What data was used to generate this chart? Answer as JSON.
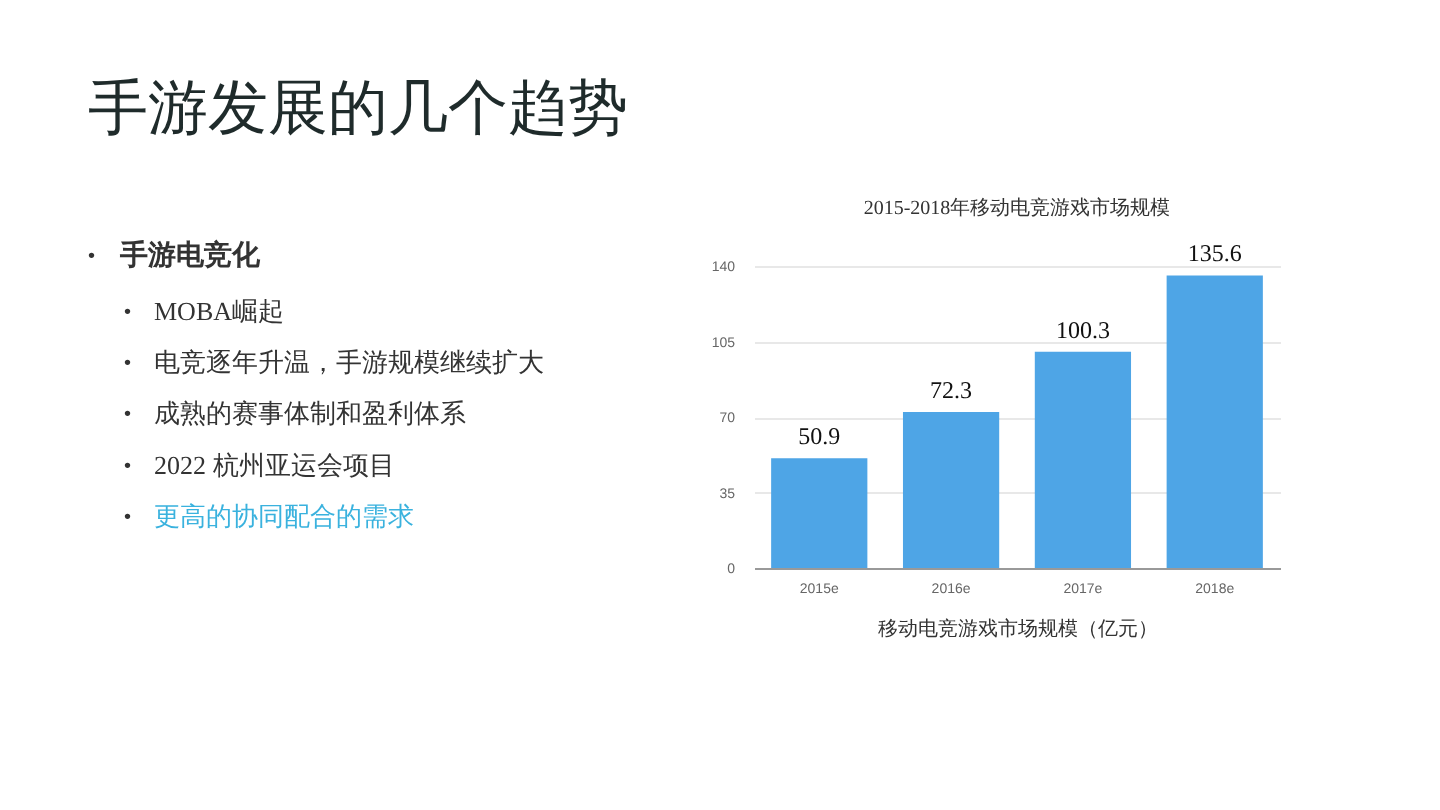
{
  "chart_data": {
    "type": "bar",
    "title": "手游发展的几个趋势",
    "subtitle": "2015-2018年移动电竞游戏市场规模",
    "xlabel": "移动电竞游戏市场规模（亿元）",
    "categories": [
      "2015e",
      "2016e",
      "2017e",
      "2018e"
    ],
    "values": [
      50.9,
      72.3,
      100.3,
      135.6
    ],
    "color": "#4ea5e6",
    "ylim": [
      0,
      140
    ],
    "yticks": [
      0,
      35,
      70,
      105,
      140
    ],
    "grid": "y",
    "data_labels": true,
    "annotations": [
      "• 手游电竞化",
      "• MOBA崛起",
      "• 电竞逐年升温，手游规模继续扩大",
      "• 成熟的赛事体制和盈利体系",
      "• 2022 杭州亚运会项目",
      "• 更高的协同配合的需求"
    ]
  }
}
